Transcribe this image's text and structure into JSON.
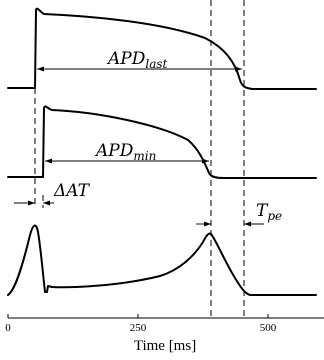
{
  "apd_last_label": "APD",
  "apd_last_sub": "last",
  "apd_min_label": "APD",
  "apd_min_sub": "min",
  "delta_at_label": "ΔAT",
  "tpe_label": "T",
  "tpe_sub": "pe",
  "x_axis": {
    "title": "Time [ms]",
    "ticks": [
      "0",
      "250",
      "500"
    ]
  }
}
